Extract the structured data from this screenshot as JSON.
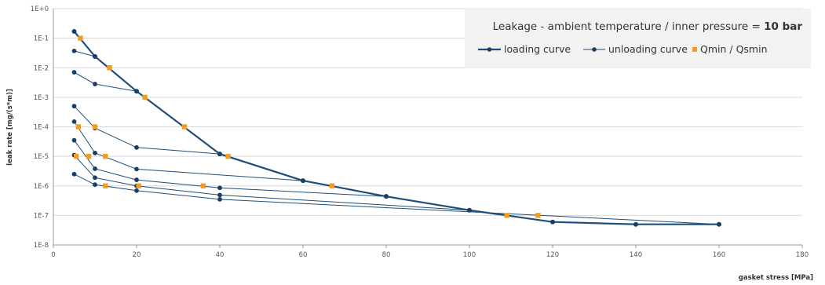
{
  "chart_data": {
    "type": "line",
    "title": "Leakage - ambient temperature / inner pressure = ",
    "title_emphasis": "10 bar",
    "xlabel": "gasket stress [MPa]",
    "ylabel": "leak rate [mg/(s*m)]",
    "xlim": [
      0,
      180
    ],
    "ylim": [
      1e-08,
      1
    ],
    "y_scale": "log",
    "x_ticks": [
      "0",
      "20",
      "40",
      "60",
      "80",
      "100",
      "120",
      "140",
      "160",
      "180"
    ],
    "y_ticks": [
      "1E-8",
      "1E-7",
      "1E-6",
      "1E-5",
      "1E-4",
      "1E-3",
      "1E-2",
      "1E-1",
      "1E+0"
    ],
    "grid": true,
    "legend_position": "top-right",
    "legend": [
      "loading curve",
      "unloading curve",
      "Qmin / Qsmin"
    ],
    "colors": {
      "line": "#1f4e79",
      "marker": "#1a3f66",
      "qmin": "#f39c1d",
      "grid": "#d9d9d9",
      "legend_bg": "#f2f2f2"
    },
    "loading_curve": {
      "name": "loading curve",
      "x": [
        5,
        10,
        20,
        40,
        60,
        80,
        100,
        120,
        140,
        160
      ],
      "y": [
        0.17,
        0.024,
        0.0016,
        1.2e-05,
        1.5e-06,
        4.4e-07,
        1.5e-07,
        6e-08,
        5e-08,
        5e-08
      ]
    },
    "unloading_curves": [
      {
        "x": [
          5,
          10
        ],
        "y": [
          0.037,
          0.024
        ]
      },
      {
        "x": [
          5,
          10,
          20
        ],
        "y": [
          0.007,
          0.0028,
          0.0016
        ]
      },
      {
        "x": [
          5,
          10,
          20,
          40
        ],
        "y": [
          0.0005,
          9e-05,
          2e-05,
          1.2e-05
        ]
      },
      {
        "x": [
          5,
          10,
          20,
          60
        ],
        "y": [
          0.00015,
          1.3e-05,
          3.7e-06,
          1.5e-06
        ]
      },
      {
        "x": [
          5,
          10,
          20,
          40,
          80
        ],
        "y": [
          3.5e-05,
          3.8e-06,
          1.6e-06,
          8.6e-07,
          4.4e-07
        ]
      },
      {
        "x": [
          5,
          10,
          20,
          40,
          100
        ],
        "y": [
          1.1e-05,
          1.9e-06,
          1e-06,
          4.9e-07,
          1.5e-07
        ]
      },
      {
        "x": [
          5,
          10,
          20,
          40,
          160
        ],
        "y": [
          2.5e-06,
          1.1e-06,
          6.9e-07,
          3.5e-07,
          5e-08
        ]
      }
    ],
    "qmin_points": {
      "name": "Qmin / Qsmin",
      "x": [
        6.5,
        13.5,
        22,
        31.5,
        42,
        67,
        6,
        10,
        5.5,
        8.5,
        12.5,
        36,
        20.5,
        12.5,
        109,
        116.5
      ],
      "y": [
        0.1,
        0.01,
        0.001,
        0.0001,
        1e-05,
        1e-06,
        0.0001,
        0.0001,
        1e-05,
        1e-05,
        1e-05,
        1e-06,
        1e-06,
        1e-06,
        1e-07,
        1e-07
      ]
    }
  }
}
